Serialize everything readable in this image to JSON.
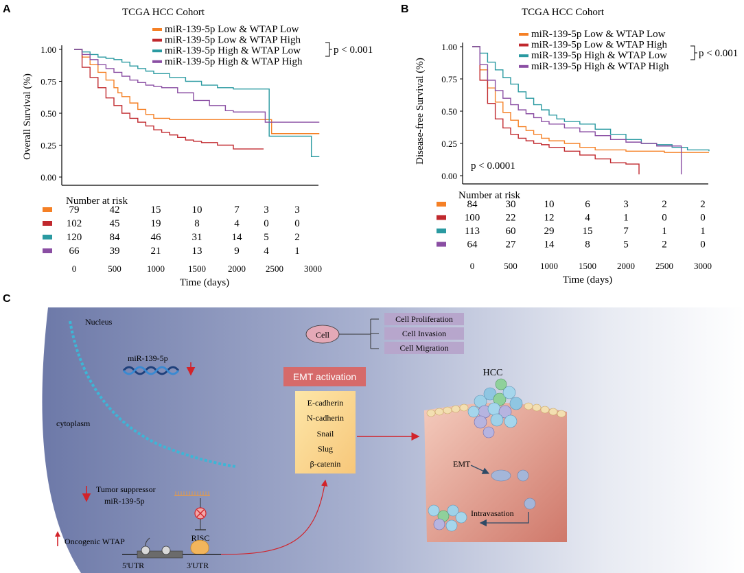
{
  "panels": {
    "A": {
      "letter": "A",
      "title": "TCGA HCC Cohort",
      "ylabel": "Overall Survival (%)",
      "xlabel": "Time (days)",
      "pvalue": "p < 0.001",
      "risk_title": "Number at risk"
    },
    "B": {
      "letter": "B",
      "title": "TCGA HCC Cohort",
      "ylabel": "Disease-free Survival (%)",
      "xlabel": "Time (days)",
      "pvalue": "p < 0.001",
      "pvalue_inner": "p < 0.0001",
      "risk_title": "Number at risk"
    },
    "C": {
      "letter": "C",
      "nucleus": "Nucleus",
      "mir_label": "miR-139-5p",
      "cytoplasm": "cytoplasm",
      "cell": "Cell",
      "outcomes": [
        "Cell Proliferation",
        "Cell Invasion",
        "Cell Migration"
      ],
      "emt_activation": "EMT activation",
      "markers": [
        "E-cadherin",
        "N-cadherin",
        "Snail",
        "Slug",
        "β-catenin"
      ],
      "hcc": "HCC",
      "emt": "EMT",
      "intravasation": "Intravasation",
      "tumor_suppressor": "Tumor suppressor",
      "tumor_suppressor_2": "miR-139-5p",
      "risc": "RISC",
      "oncogenic": "Oncogenic WTAP",
      "utr5": "5'UTR",
      "utr3": "3'UTR"
    }
  },
  "colors": {
    "low_low": "#f58025",
    "low_high": "#c0282d",
    "high_low": "#2a9aa1",
    "high_high": "#8a4ea3"
  },
  "chart_data": [
    {
      "type": "line",
      "title": "TCGA HCC Cohort",
      "xlabel": "Time (days)",
      "ylabel": "Overall Survival (%)",
      "xlim": [
        0,
        3000
      ],
      "ylim": [
        0,
        1
      ],
      "xticks": [
        0,
        500,
        1000,
        1500,
        2000,
        2500,
        3000
      ],
      "yticks": [
        "0.00",
        "0.25",
        "0.50",
        "0.75",
        "1.00"
      ],
      "series": [
        {
          "name": "miR-139-5p Low & WTAP Low",
          "color": "#f58025",
          "x": [
            0,
            100,
            200,
            300,
            400,
            500,
            550,
            600,
            700,
            800,
            900,
            1000,
            1100,
            1200,
            1400,
            2450,
            2480,
            3080
          ],
          "y": [
            1.0,
            0.94,
            0.88,
            0.82,
            0.76,
            0.7,
            0.66,
            0.63,
            0.58,
            0.53,
            0.49,
            0.46,
            0.46,
            0.45,
            0.45,
            0.45,
            0.34,
            0.34
          ],
          "risk": [
            79,
            42,
            15,
            10,
            7,
            3,
            3
          ]
        },
        {
          "name": "miR-139-5p Low & WTAP High",
          "color": "#c0282d",
          "x": [
            0,
            100,
            200,
            300,
            400,
            500,
            600,
            700,
            800,
            900,
            1000,
            1100,
            1200,
            1300,
            1400,
            1500,
            1600,
            1800,
            2000,
            2380
          ],
          "y": [
            1.0,
            0.86,
            0.78,
            0.7,
            0.62,
            0.56,
            0.5,
            0.46,
            0.43,
            0.4,
            0.37,
            0.35,
            0.33,
            0.31,
            0.29,
            0.28,
            0.27,
            0.25,
            0.22,
            0.22
          ],
          "risk": [
            102,
            45,
            19,
            8,
            4,
            0,
            0
          ]
        },
        {
          "name": "miR-139-5p High & WTAP Low",
          "color": "#2a9aa1",
          "x": [
            0,
            100,
            200,
            300,
            400,
            500,
            600,
            700,
            800,
            900,
            1000,
            1200,
            1400,
            1600,
            1800,
            2000,
            2200,
            2400,
            2450,
            2950,
            2980,
            3080
          ],
          "y": [
            1.0,
            0.98,
            0.96,
            0.94,
            0.93,
            0.92,
            0.9,
            0.87,
            0.85,
            0.83,
            0.81,
            0.78,
            0.75,
            0.72,
            0.7,
            0.69,
            0.69,
            0.69,
            0.32,
            0.32,
            0.16,
            0.16
          ],
          "risk": [
            120,
            84,
            46,
            31,
            14,
            5,
            2
          ]
        },
        {
          "name": "miR-139-5p High & WTAP High",
          "color": "#8a4ea3",
          "x": [
            0,
            100,
            200,
            300,
            400,
            500,
            600,
            700,
            800,
            900,
            1000,
            1100,
            1300,
            1500,
            1700,
            1900,
            2000,
            2300,
            2400,
            3080
          ],
          "y": [
            1.0,
            0.96,
            0.92,
            0.88,
            0.85,
            0.82,
            0.79,
            0.76,
            0.74,
            0.72,
            0.71,
            0.7,
            0.66,
            0.6,
            0.56,
            0.52,
            0.51,
            0.51,
            0.43,
            0.43
          ],
          "risk": [
            66,
            39,
            21,
            13,
            9,
            4,
            1
          ]
        }
      ]
    },
    {
      "type": "line",
      "title": "TCGA HCC Cohort",
      "xlabel": "Time (days)",
      "ylabel": "Disease-free Survival (%)",
      "xlim": [
        0,
        3000
      ],
      "ylim": [
        0,
        1
      ],
      "xticks": [
        0,
        500,
        1000,
        1500,
        2000,
        2500,
        3000
      ],
      "yticks": [
        "0.00",
        "0.25",
        "0.50",
        "0.75",
        "1.00"
      ],
      "series": [
        {
          "name": "miR-139-5p Low & WTAP Low",
          "color": "#f58025",
          "x": [
            0,
            100,
            200,
            300,
            400,
            500,
            600,
            700,
            800,
            900,
            1000,
            1200,
            1400,
            1600,
            2000,
            2500,
            3080
          ],
          "y": [
            1.0,
            0.82,
            0.68,
            0.57,
            0.49,
            0.43,
            0.38,
            0.35,
            0.32,
            0.29,
            0.27,
            0.25,
            0.22,
            0.2,
            0.19,
            0.18,
            0.18
          ],
          "risk": [
            84,
            30,
            10,
            6,
            3,
            2,
            2
          ]
        },
        {
          "name": "miR-139-5p Low & WTAP High",
          "color": "#c0282d",
          "x": [
            0,
            100,
            200,
            300,
            400,
            500,
            600,
            700,
            800,
            900,
            1000,
            1200,
            1400,
            1600,
            1800,
            2000,
            2150,
            2170
          ],
          "y": [
            1.0,
            0.74,
            0.56,
            0.44,
            0.37,
            0.32,
            0.29,
            0.27,
            0.25,
            0.24,
            0.22,
            0.19,
            0.16,
            0.13,
            0.1,
            0.09,
            0.09,
            0.01
          ],
          "risk": [
            100,
            22,
            12,
            4,
            1,
            0,
            0
          ]
        },
        {
          "name": "miR-139-5p High & WTAP Low",
          "color": "#2a9aa1",
          "x": [
            0,
            100,
            200,
            300,
            400,
            500,
            600,
            700,
            800,
            900,
            1000,
            1100,
            1200,
            1400,
            1600,
            1800,
            2000,
            2200,
            2400,
            2600,
            2800,
            3080
          ],
          "y": [
            1.0,
            0.95,
            0.88,
            0.82,
            0.76,
            0.71,
            0.65,
            0.6,
            0.55,
            0.51,
            0.47,
            0.44,
            0.42,
            0.4,
            0.36,
            0.32,
            0.28,
            0.25,
            0.24,
            0.22,
            0.2,
            0.19
          ],
          "risk": [
            113,
            60,
            29,
            15,
            7,
            1,
            1
          ]
        },
        {
          "name": "miR-139-5p High & WTAP High",
          "color": "#8a4ea3",
          "x": [
            0,
            100,
            200,
            300,
            400,
            500,
            600,
            700,
            800,
            900,
            1000,
            1200,
            1400,
            1600,
            1800,
            2000,
            2200,
            2400,
            2700,
            2720
          ],
          "y": [
            1.0,
            0.86,
            0.74,
            0.66,
            0.6,
            0.55,
            0.51,
            0.48,
            0.45,
            0.42,
            0.4,
            0.37,
            0.34,
            0.31,
            0.28,
            0.26,
            0.25,
            0.23,
            0.23,
            0.01
          ],
          "risk": [
            64,
            27,
            14,
            8,
            5,
            2,
            0
          ]
        }
      ]
    }
  ]
}
